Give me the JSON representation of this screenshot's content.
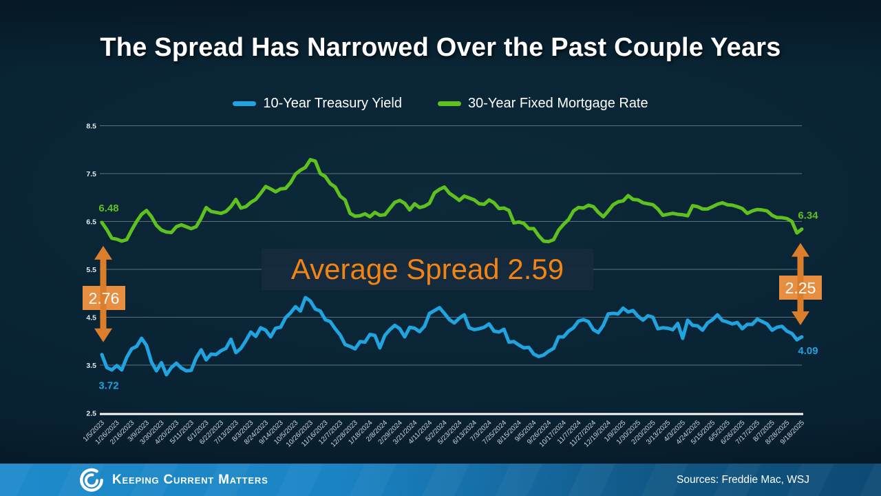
{
  "slide": {
    "title": "The Spread Has Narrowed Over the Past Couple Years"
  },
  "legend": {
    "items": [
      {
        "label": "10-Year Treasury Yield",
        "color": "#21A3DF"
      },
      {
        "label": "30-Year Fixed Mortgage Rate",
        "color": "#5FC120"
      }
    ]
  },
  "annotations": {
    "average_spread": "Average Spread 2.59",
    "start_spread": "2.76",
    "end_spread": "2.25",
    "mortgage_start": "6.48",
    "mortgage_end": "6.34",
    "treasury_start": "3.72",
    "treasury_end": "4.09"
  },
  "footer": {
    "brand": "Keeping Current Matters",
    "sources": "Sources: Freddie Mac, WSJ"
  },
  "colors": {
    "treasury": "#21A3DF",
    "mortgage": "#5FC120",
    "accent_orange": "#DB7E2C",
    "accent_orange_box": "#E88E40",
    "avg_text_orange": "#F28414",
    "gridline": "#5d717d",
    "axis_line": "#ffffff",
    "tick_text": "#ccd4da",
    "background": "#082233",
    "footer_blue_left": "#1B85C6",
    "footer_blue_right": "#0D4A74"
  },
  "chart_data": {
    "type": "line",
    "title": "",
    "xlabel": "",
    "ylabel": "",
    "ylim": [
      2.5,
      8.5
    ],
    "yticks": [
      2.5,
      3.5,
      4.5,
      5.5,
      6.5,
      7.5,
      8.5
    ],
    "grid": true,
    "legend_position": "top",
    "x_tick_labels": [
      "1/5/2023",
      "1/26/2023",
      "2/16/2023",
      "3/9/2023",
      "3/30/2023",
      "4/20/2023",
      "5/11/2023",
      "6/1/2023",
      "6/22/2023",
      "7/13/2023",
      "8/3/2023",
      "8/24/2023",
      "9/14/2023",
      "10/5/2023",
      "10/26/2023",
      "11/16/2023",
      "12/7/2023",
      "12/28/2023",
      "1/18/2024",
      "2/8/2024",
      "2/29/2024",
      "3/21/2024",
      "4/11/2024",
      "5/2/2024",
      "5/23/2024",
      "6/13/2024",
      "7/3/2024",
      "7/25/2024",
      "8/15/2024",
      "9/5/2024",
      "9/26/2024",
      "10/17/2024",
      "11/7/2024",
      "11/27/2024",
      "12/19/2024",
      "1/9/2025",
      "1/30/2025",
      "2/20/2025",
      "3/13/2025",
      "4/3/2025",
      "4/24/2025",
      "5/15/2025",
      "6/5/2025",
      "6/26/2025",
      "7/17/2025",
      "8/7/2025",
      "8/28/2025",
      "9/18/2025"
    ],
    "ticks_every_n_points": 3,
    "series": [
      {
        "name": "10-Year Treasury Yield",
        "color": "#21A3DF",
        "values": [
          3.72,
          3.45,
          3.4,
          3.49,
          3.4,
          3.66,
          3.84,
          3.89,
          4.06,
          3.91,
          3.56,
          3.38,
          3.55,
          3.3,
          3.45,
          3.54,
          3.44,
          3.38,
          3.39,
          3.65,
          3.82,
          3.61,
          3.73,
          3.72,
          3.8,
          3.85,
          4.04,
          3.76,
          3.85,
          4.01,
          4.19,
          4.1,
          4.28,
          4.23,
          4.09,
          4.27,
          4.29,
          4.49,
          4.59,
          4.72,
          4.63,
          4.91,
          4.84,
          4.67,
          4.63,
          4.45,
          4.41,
          4.26,
          4.13,
          3.93,
          3.89,
          3.84,
          3.99,
          3.98,
          4.14,
          4.12,
          3.86,
          4.12,
          4.24,
          4.33,
          4.26,
          4.09,
          4.29,
          4.27,
          4.2,
          4.31,
          4.58,
          4.64,
          4.7,
          4.58,
          4.45,
          4.38,
          4.48,
          4.55,
          4.28,
          4.24,
          4.26,
          4.29,
          4.36,
          4.21,
          4.19,
          4.25,
          3.98,
          3.99,
          3.92,
          3.86,
          3.87,
          3.73,
          3.68,
          3.71,
          3.79,
          3.85,
          4.09,
          4.09,
          4.21,
          4.28,
          4.42,
          4.45,
          4.41,
          4.24,
          4.18,
          4.33,
          4.57,
          4.58,
          4.57,
          4.69,
          4.61,
          4.64,
          4.52,
          4.44,
          4.53,
          4.5,
          4.26,
          4.28,
          4.27,
          4.24,
          4.37,
          4.06,
          4.44,
          4.33,
          4.32,
          4.23,
          4.38,
          4.45,
          4.55,
          4.43,
          4.4,
          4.36,
          4.39,
          4.26,
          4.35,
          4.35,
          4.46,
          4.41,
          4.36,
          4.23,
          4.29,
          4.31,
          4.21,
          4.16,
          4.03,
          4.09
        ]
      },
      {
        "name": "30-Year Fixed Mortgage Rate",
        "color": "#5FC120",
        "values": [
          6.48,
          6.33,
          6.15,
          6.13,
          6.09,
          6.12,
          6.32,
          6.5,
          6.65,
          6.73,
          6.6,
          6.42,
          6.32,
          6.28,
          6.27,
          6.39,
          6.43,
          6.39,
          6.35,
          6.39,
          6.57,
          6.79,
          6.71,
          6.69,
          6.67,
          6.71,
          6.81,
          6.96,
          6.78,
          6.81,
          6.9,
          6.96,
          7.09,
          7.23,
          7.18,
          7.12,
          7.18,
          7.19,
          7.31,
          7.49,
          7.57,
          7.63,
          7.79,
          7.76,
          7.5,
          7.44,
          7.29,
          7.22,
          7.03,
          6.95,
          6.67,
          6.61,
          6.62,
          6.66,
          6.6,
          6.69,
          6.63,
          6.64,
          6.77,
          6.9,
          6.94,
          6.88,
          6.74,
          6.87,
          6.79,
          6.82,
          6.88,
          7.1,
          7.17,
          7.22,
          7.09,
          7.02,
          6.94,
          7.03,
          6.99,
          6.95,
          6.87,
          6.86,
          6.95,
          6.89,
          6.77,
          6.78,
          6.73,
          6.47,
          6.49,
          6.46,
          6.35,
          6.35,
          6.2,
          6.09,
          6.08,
          6.12,
          6.32,
          6.44,
          6.54,
          6.72,
          6.79,
          6.78,
          6.84,
          6.81,
          6.69,
          6.6,
          6.72,
          6.85,
          6.91,
          6.93,
          7.04,
          6.96,
          6.95,
          6.89,
          6.87,
          6.85,
          6.76,
          6.63,
          6.65,
          6.67,
          6.65,
          6.64,
          6.62,
          6.83,
          6.81,
          6.76,
          6.76,
          6.81,
          6.86,
          6.89,
          6.85,
          6.84,
          6.81,
          6.77,
          6.67,
          6.72,
          6.75,
          6.74,
          6.72,
          6.63,
          6.58,
          6.58,
          6.56,
          6.5,
          6.26,
          6.34
        ]
      }
    ]
  }
}
